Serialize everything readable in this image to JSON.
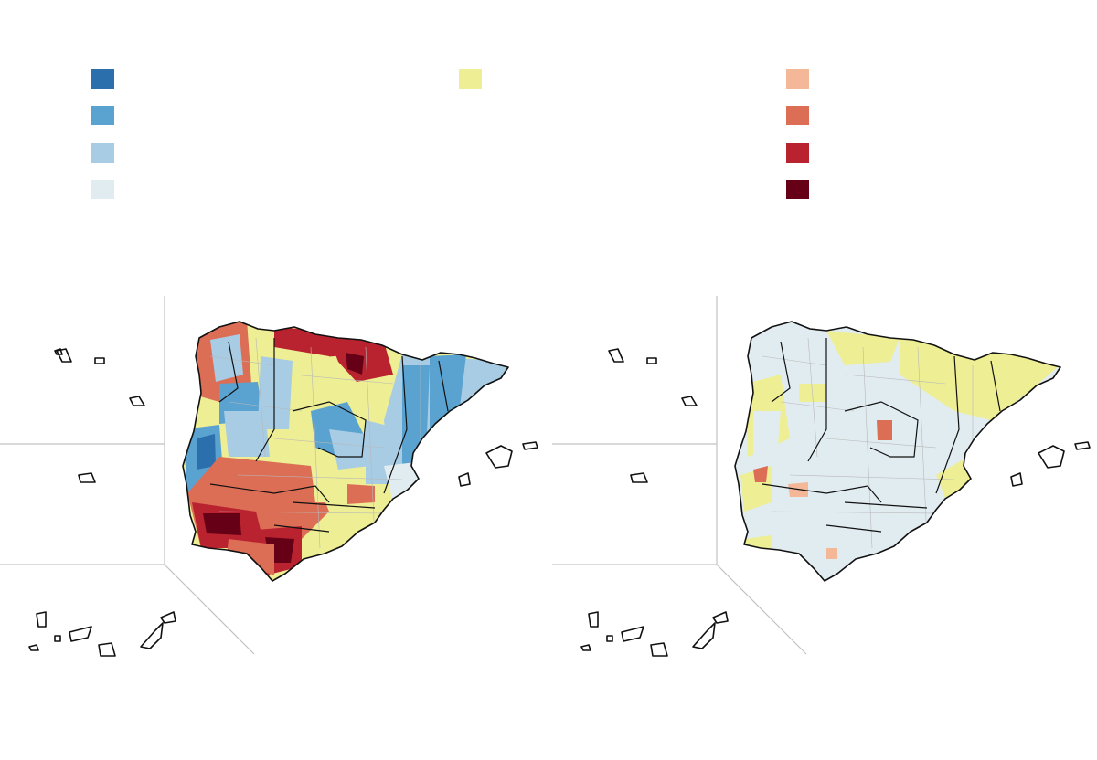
{
  "legend": {
    "colors": {
      "blue_dark": "#2b6fad",
      "blue_mid": "#5aa2cf",
      "blue_light": "#a7cce4",
      "blue_pale": "#e1ecf1",
      "yellow": "#eeee94",
      "red_pale": "#f4b899",
      "red_mid": "#dc6e56",
      "red_dark": "#b92330",
      "red_darkest": "#660017"
    }
  },
  "maps": {
    "left": {
      "palette": "mixed"
    },
    "right": {
      "palette": "mostly-pale"
    }
  }
}
